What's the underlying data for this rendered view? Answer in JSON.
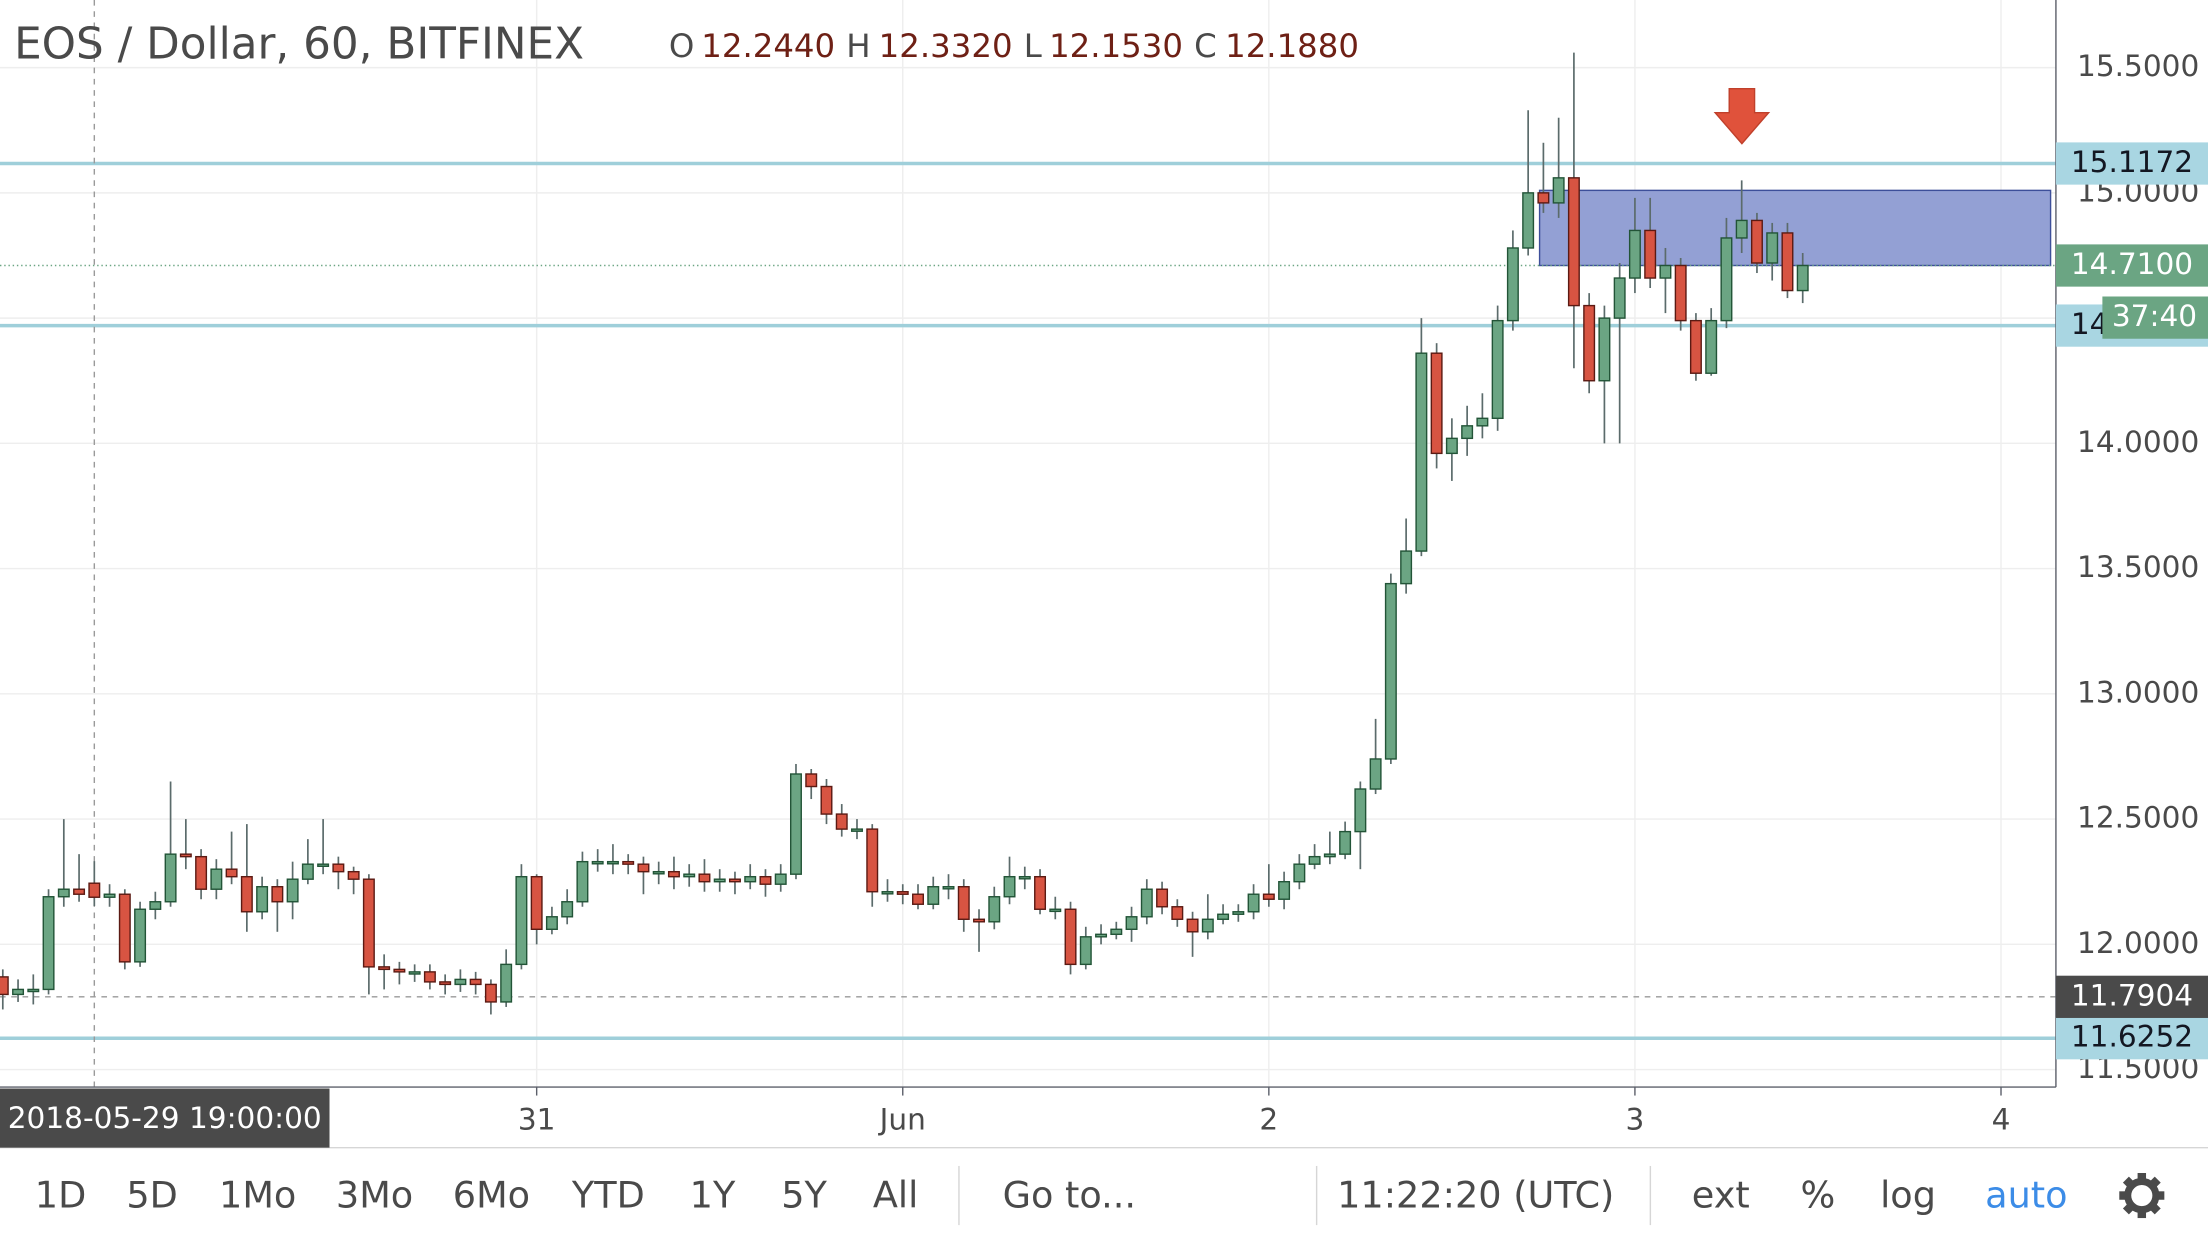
{
  "chart_data": {
    "type": "candlestick",
    "title": "EOS / Dollar, 60, BITFINEX",
    "ohlc_legend": [
      {
        "key": "O",
        "value": "12.2440"
      },
      {
        "key": "H",
        "value": "12.3320"
      },
      {
        "key": "L",
        "value": "12.1530"
      },
      {
        "key": "C",
        "value": "12.1880"
      }
    ],
    "x": [
      "2018-05-29T13:00",
      "2018-05-29T14:00",
      "2018-05-29T15:00",
      "2018-05-29T16:00",
      "2018-05-29T17:00",
      "2018-05-29T18:00",
      "2018-05-29T19:00",
      "2018-05-29T20:00",
      "2018-05-29T21:00",
      "2018-05-29T22:00",
      "2018-05-29T23:00",
      "2018-05-30T00:00",
      "2018-05-30T01:00",
      "2018-05-30T02:00",
      "2018-05-30T03:00",
      "2018-05-30T04:00",
      "2018-05-30T05:00",
      "2018-05-30T06:00",
      "2018-05-30T07:00",
      "2018-05-30T08:00",
      "2018-05-30T09:00",
      "2018-05-30T10:00",
      "2018-05-30T11:00",
      "2018-05-30T12:00",
      "2018-05-30T13:00",
      "2018-05-30T14:00",
      "2018-05-30T15:00",
      "2018-05-30T16:00",
      "2018-05-30T17:00",
      "2018-05-30T18:00",
      "2018-05-30T19:00",
      "2018-05-30T20:00",
      "2018-05-30T21:00",
      "2018-05-30T22:00",
      "2018-05-30T23:00",
      "2018-05-31T00:00",
      "2018-05-31T01:00",
      "2018-05-31T02:00",
      "2018-05-31T03:00",
      "2018-05-31T04:00",
      "2018-05-31T05:00",
      "2018-05-31T06:00",
      "2018-05-31T07:00",
      "2018-05-31T08:00",
      "2018-05-31T09:00",
      "2018-05-31T10:00",
      "2018-05-31T11:00",
      "2018-05-31T12:00",
      "2018-05-31T13:00",
      "2018-05-31T14:00",
      "2018-05-31T15:00",
      "2018-05-31T16:00",
      "2018-05-31T17:00",
      "2018-05-31T18:00",
      "2018-05-31T19:00",
      "2018-05-31T20:00",
      "2018-05-31T21:00",
      "2018-05-31T22:00",
      "2018-05-31T23:00",
      "2018-06-01T00:00",
      "2018-06-01T01:00",
      "2018-06-01T02:00",
      "2018-06-01T03:00",
      "2018-06-01T04:00",
      "2018-06-01T05:00",
      "2018-06-01T06:00",
      "2018-06-01T07:00",
      "2018-06-01T08:00",
      "2018-06-01T09:00",
      "2018-06-01T10:00",
      "2018-06-01T11:00",
      "2018-06-01T12:00",
      "2018-06-01T13:00",
      "2018-06-01T14:00",
      "2018-06-01T15:00",
      "2018-06-01T16:00",
      "2018-06-01T17:00",
      "2018-06-01T18:00",
      "2018-06-01T19:00",
      "2018-06-01T20:00",
      "2018-06-01T21:00",
      "2018-06-01T22:00",
      "2018-06-01T23:00",
      "2018-06-02T00:00",
      "2018-06-02T01:00",
      "2018-06-02T02:00",
      "2018-06-02T03:00",
      "2018-06-02T04:00",
      "2018-06-02T05:00",
      "2018-06-02T06:00",
      "2018-06-02T07:00",
      "2018-06-02T08:00",
      "2018-06-02T09:00",
      "2018-06-02T10:00",
      "2018-06-02T11:00",
      "2018-06-02T12:00",
      "2018-06-02T13:00",
      "2018-06-02T14:00",
      "2018-06-02T15:00",
      "2018-06-02T16:00",
      "2018-06-02T17:00",
      "2018-06-02T18:00",
      "2018-06-02T19:00",
      "2018-06-02T20:00",
      "2018-06-02T21:00",
      "2018-06-02T22:00",
      "2018-06-02T23:00",
      "2018-06-03T00:00",
      "2018-06-03T01:00",
      "2018-06-03T02:00",
      "2018-06-03T03:00",
      "2018-06-03T04:00",
      "2018-06-03T05:00",
      "2018-06-03T06:00",
      "2018-06-03T07:00",
      "2018-06-03T08:00",
      "2018-06-03T09:00",
      "2018-06-03T10:00",
      "2018-06-03T11:00"
    ],
    "open": [
      11.87,
      11.8,
      11.82,
      11.82,
      12.19,
      12.22,
      12.244,
      12.188,
      12.2,
      11.93,
      12.14,
      12.17,
      12.36,
      12.35,
      12.22,
      12.3,
      12.27,
      12.13,
      12.23,
      12.17,
      12.26,
      12.32,
      12.32,
      12.29,
      12.26,
      11.91,
      11.9,
      11.89,
      11.89,
      11.85,
      11.84,
      11.86,
      11.84,
      11.77,
      11.92,
      12.27,
      12.06,
      12.11,
      12.17,
      12.33,
      12.33,
      12.33,
      12.32,
      12.29,
      12.29,
      12.27,
      12.28,
      12.25,
      12.26,
      12.25,
      12.27,
      12.24,
      12.28,
      12.68,
      12.63,
      12.52,
      12.46,
      12.46,
      12.21,
      12.21,
      12.2,
      12.16,
      12.23,
      12.23,
      12.1,
      12.09,
      12.19,
      12.27,
      12.27,
      12.14,
      12.14,
      11.92,
      12.03,
      12.04,
      12.06,
      12.11,
      12.22,
      12.15,
      12.1,
      12.05,
      12.1,
      12.12,
      12.13,
      12.2,
      12.18,
      12.25,
      12.32,
      12.35,
      12.36,
      12.45,
      12.62,
      12.74,
      13.44,
      13.57,
      14.36,
      13.96,
      14.02,
      14.07,
      14.1,
      14.49,
      14.78,
      15.0,
      14.96,
      15.06,
      14.55,
      14.25,
      14.5,
      14.66,
      14.85,
      14.66,
      14.71,
      14.49,
      14.28,
      14.49,
      14.82,
      14.89,
      14.72,
      14.84,
      14.61
    ],
    "high": [
      11.9,
      11.86,
      11.88,
      12.22,
      12.5,
      12.36,
      12.332,
      12.24,
      12.22,
      12.17,
      12.21,
      12.65,
      12.5,
      12.38,
      12.34,
      12.45,
      12.48,
      12.27,
      12.26,
      12.33,
      12.42,
      12.5,
      12.35,
      12.31,
      12.28,
      11.96,
      11.93,
      11.92,
      11.92,
      11.88,
      11.9,
      11.89,
      11.86,
      11.98,
      12.32,
      12.28,
      12.15,
      12.22,
      12.37,
      12.38,
      12.4,
      12.36,
      12.35,
      12.33,
      12.35,
      12.32,
      12.34,
      12.3,
      12.29,
      12.32,
      12.3,
      12.32,
      12.72,
      12.7,
      12.66,
      12.56,
      12.5,
      12.48,
      12.26,
      12.24,
      12.24,
      12.27,
      12.28,
      12.26,
      12.14,
      12.23,
      12.35,
      12.31,
      12.3,
      12.19,
      12.17,
      12.07,
      12.08,
      12.09,
      12.15,
      12.26,
      12.25,
      12.18,
      12.13,
      12.2,
      12.16,
      12.16,
      12.24,
      12.32,
      12.29,
      12.36,
      12.4,
      12.45,
      12.49,
      12.65,
      12.9,
      13.48,
      13.7,
      14.5,
      14.4,
      14.1,
      14.15,
      14.2,
      14.55,
      14.85,
      15.33,
      15.2,
      15.3,
      15.56,
      14.6,
      14.55,
      14.72,
      14.98,
      14.98,
      14.78,
      14.74,
      14.52,
      14.54,
      14.9,
      15.05,
      14.92,
      14.88,
      14.88,
      14.76
    ],
    "low": [
      11.74,
      11.77,
      11.76,
      11.8,
      12.15,
      12.17,
      12.153,
      12.15,
      11.9,
      11.91,
      12.1,
      12.15,
      12.3,
      12.18,
      12.18,
      12.24,
      12.05,
      12.1,
      12.05,
      12.1,
      12.24,
      12.28,
      12.22,
      12.2,
      11.8,
      11.82,
      11.84,
      11.85,
      11.82,
      11.8,
      11.81,
      11.8,
      11.72,
      11.75,
      11.9,
      12.0,
      12.04,
      12.08,
      12.15,
      12.29,
      12.28,
      12.28,
      12.2,
      12.24,
      12.22,
      12.23,
      12.21,
      12.21,
      12.2,
      12.22,
      12.19,
      12.21,
      12.26,
      12.58,
      12.48,
      12.43,
      12.42,
      12.15,
      12.17,
      12.16,
      12.14,
      12.14,
      12.18,
      12.05,
      11.97,
      12.06,
      12.16,
      12.22,
      12.12,
      12.1,
      11.88,
      11.9,
      12.0,
      12.02,
      12.01,
      12.08,
      12.12,
      12.07,
      11.95,
      12.02,
      12.08,
      12.09,
      12.1,
      12.15,
      12.14,
      12.22,
      12.3,
      12.32,
      12.34,
      12.3,
      12.6,
      12.72,
      13.4,
      13.55,
      13.9,
      13.85,
      13.95,
      14.02,
      14.05,
      14.45,
      14.75,
      14.92,
      14.9,
      14.3,
      14.2,
      14.0,
      14.0,
      14.6,
      14.62,
      14.52,
      14.45,
      14.25,
      14.27,
      14.46,
      14.76,
      14.68,
      14.65,
      14.58,
      14.56
    ],
    "close": [
      11.8,
      11.82,
      11.82,
      12.19,
      12.22,
      12.2,
      12.188,
      12.2,
      11.93,
      12.14,
      12.17,
      12.36,
      12.35,
      12.22,
      12.3,
      12.27,
      12.13,
      12.23,
      12.17,
      12.26,
      12.32,
      12.32,
      12.29,
      12.26,
      11.91,
      11.9,
      11.89,
      11.89,
      11.85,
      11.84,
      11.86,
      11.84,
      11.77,
      11.92,
      12.27,
      12.06,
      12.11,
      12.17,
      12.33,
      12.33,
      12.33,
      12.32,
      12.29,
      12.29,
      12.27,
      12.28,
      12.25,
      12.26,
      12.25,
      12.27,
      12.24,
      12.28,
      12.68,
      12.63,
      12.52,
      12.46,
      12.46,
      12.21,
      12.21,
      12.2,
      12.16,
      12.23,
      12.23,
      12.1,
      12.09,
      12.19,
      12.27,
      12.27,
      12.14,
      12.14,
      11.92,
      12.03,
      12.04,
      12.06,
      12.11,
      12.22,
      12.15,
      12.1,
      12.05,
      12.1,
      12.12,
      12.13,
      12.2,
      12.18,
      12.25,
      12.32,
      12.35,
      12.36,
      12.45,
      12.62,
      12.74,
      13.44,
      13.57,
      14.36,
      13.96,
      14.02,
      14.07,
      14.1,
      14.49,
      14.78,
      15.0,
      14.96,
      15.06,
      14.55,
      14.25,
      14.5,
      14.66,
      14.85,
      14.66,
      14.71,
      14.49,
      14.28,
      14.49,
      14.82,
      14.89,
      14.72,
      14.84,
      14.61,
      14.71
    ],
    "up_color": "#6ba583",
    "up_border": "#225437",
    "down_color": "#d75442",
    "down_border": "#5b1a13",
    "wick_color": "#5b6b6b",
    "xlim": [
      "2018-05-29T12:49",
      "2018-06-04T03:36"
    ],
    "xticks": [
      {
        "value": "2018-05-31T00:00",
        "label": "31"
      },
      {
        "value": "2018-06-01T00:00",
        "label": "Jun"
      },
      {
        "value": "2018-06-02T00:00",
        "label": "2"
      },
      {
        "value": "2018-06-03T00:00",
        "label": "3"
      },
      {
        "value": "2018-06-04T00:00",
        "label": "4"
      }
    ],
    "ylim": [
      11.43,
      15.77
    ],
    "yticks": [
      {
        "value": 15.5,
        "label": "15.5000"
      },
      {
        "value": 15,
        "label": "15.0000"
      },
      {
        "value": 14.5,
        "label": "14.5000"
      },
      {
        "value": 14,
        "label": "14.0000"
      },
      {
        "value": 13.5,
        "label": "13.5000"
      },
      {
        "value": 13,
        "label": "13.0000"
      },
      {
        "value": 12.5,
        "label": "12.5000"
      },
      {
        "value": 12,
        "label": "12.0000"
      },
      {
        "value": 11.5,
        "label": "11.5000"
      }
    ],
    "grid": true,
    "hlines": [
      15.1172,
      14.4702,
      11.6252
    ],
    "hline_color": "#9fcfda",
    "zone": {
      "x": [
        "2018-06-02T17:45",
        "2018-06-04T03:15"
      ],
      "y": [
        15.01,
        14.71
      ],
      "color": "#8d9bd2"
    },
    "last_price": {
      "value": 14.71,
      "label": "14.7100",
      "countdown": "37:40"
    },
    "crosshair": {
      "x": "2018-05-29T19:00",
      "label": "2018-05-29 19:00:00",
      "price": 11.7904
    }
  },
  "toolbar": {
    "ranges": [
      "1D",
      "5D",
      "1Mo",
      "3Mo",
      "6Mo",
      "YTD",
      "1Y",
      "5Y",
      "All"
    ],
    "goto": "Go to...",
    "clock": "11:22:20 (UTC)",
    "options": [
      {
        "label": "ext",
        "active": false
      },
      {
        "label": "%",
        "active": false
      },
      {
        "label": "log",
        "active": false
      },
      {
        "label": "auto",
        "active": true
      }
    ]
  }
}
